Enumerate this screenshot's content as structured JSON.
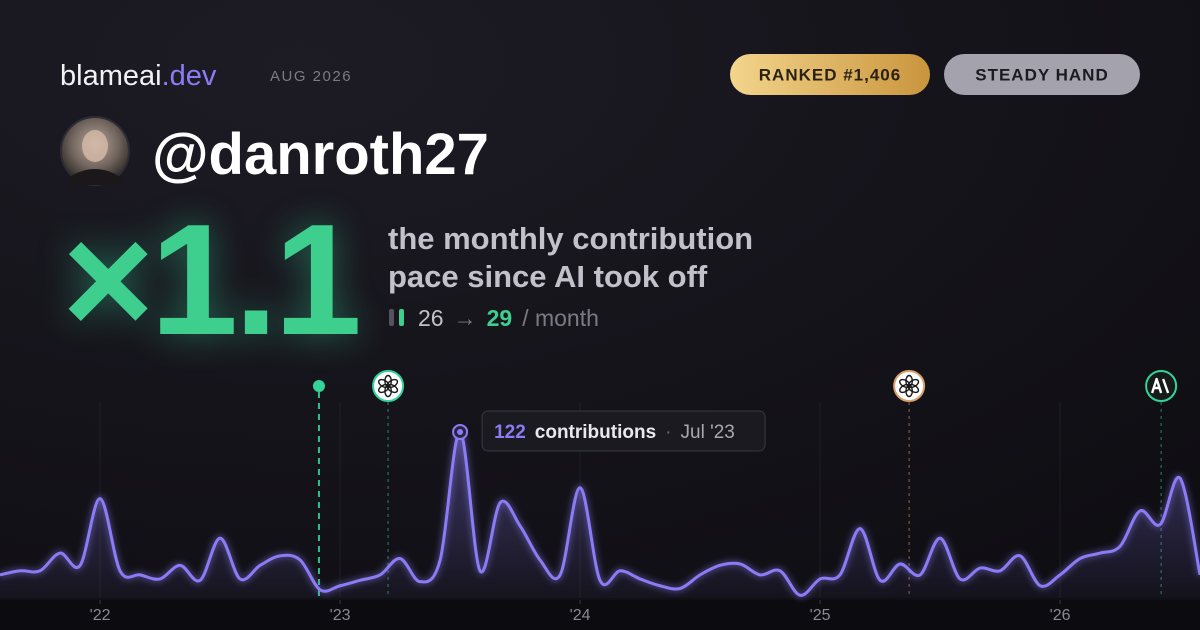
{
  "header": {
    "brand": "blameai",
    "brand_suffix": ".dev",
    "period": "AUG 2026",
    "rank_badge": "RANKED #1,406",
    "style_badge": "STEADY HAND"
  },
  "profile": {
    "handle": "@danroth27"
  },
  "stats": {
    "multiplier": "×1.1",
    "caption_line1": "the monthly contribution",
    "caption_line2": "pace since AI took off",
    "before": "26",
    "arrow": "→",
    "after": "29",
    "per": "/ month"
  },
  "chart_data": {
    "type": "line",
    "color": "#8b7cf6",
    "x": [
      2021.583,
      2021.667,
      2021.75,
      2021.833,
      2021.917,
      2022,
      2022.083,
      2022.167,
      2022.25,
      2022.333,
      2022.417,
      2022.5,
      2022.583,
      2022.667,
      2022.75,
      2022.833,
      2022.917,
      2023,
      2023.083,
      2023.167,
      2023.25,
      2023.333,
      2023.417,
      2023.5,
      2023.583,
      2023.667,
      2023.75,
      2023.833,
      2023.917,
      2024,
      2024.083,
      2024.167,
      2024.25,
      2024.333,
      2024.417,
      2024.5,
      2024.583,
      2024.667,
      2024.75,
      2024.833,
      2024.917,
      2025,
      2025.083,
      2025.167,
      2025.25,
      2025.333,
      2025.417,
      2025.5,
      2025.583,
      2025.667,
      2025.75,
      2025.833,
      2025.917,
      2026,
      2026.083,
      2026.167,
      2026.25,
      2026.333,
      2026.417,
      2026.5,
      2026.583
    ],
    "values": [
      17,
      20,
      20,
      33,
      24,
      73,
      20,
      17,
      14,
      24,
      13,
      44,
      14,
      24,
      31,
      28,
      6,
      9,
      13,
      17,
      29,
      12,
      28,
      122,
      20,
      70,
      53,
      28,
      17,
      81,
      13,
      20,
      14,
      9,
      7,
      17,
      24,
      25,
      17,
      20,
      2,
      14,
      17,
      51,
      13,
      25,
      17,
      44,
      14,
      22,
      20,
      31,
      9,
      17,
      29,
      33,
      38,
      64,
      54,
      88,
      17
    ],
    "xlim": [
      2021.583,
      2026.583
    ],
    "ylim": [
      0,
      144
    ],
    "xticks": [
      {
        "value": 2022,
        "label": "'22"
      },
      {
        "value": 2023,
        "label": "'23"
      },
      {
        "value": 2024,
        "label": "'24"
      },
      {
        "value": 2025,
        "label": "'25"
      },
      {
        "value": 2026,
        "label": "'26"
      }
    ],
    "grid": true,
    "highlight": 23,
    "tooltip": {
      "unit": "contributions",
      "date": "Jul '23"
    },
    "markers": [
      {
        "x": 2022.912,
        "color": "#34d399",
        "icon": "dot"
      },
      {
        "x": 2023.2,
        "color": "#34d399",
        "icon": "openai"
      },
      {
        "x": 2025.371,
        "color": "#d9a06b",
        "icon": "openai"
      },
      {
        "x": 2026.421,
        "color": "#34d399",
        "icon": "anthropic"
      }
    ]
  }
}
